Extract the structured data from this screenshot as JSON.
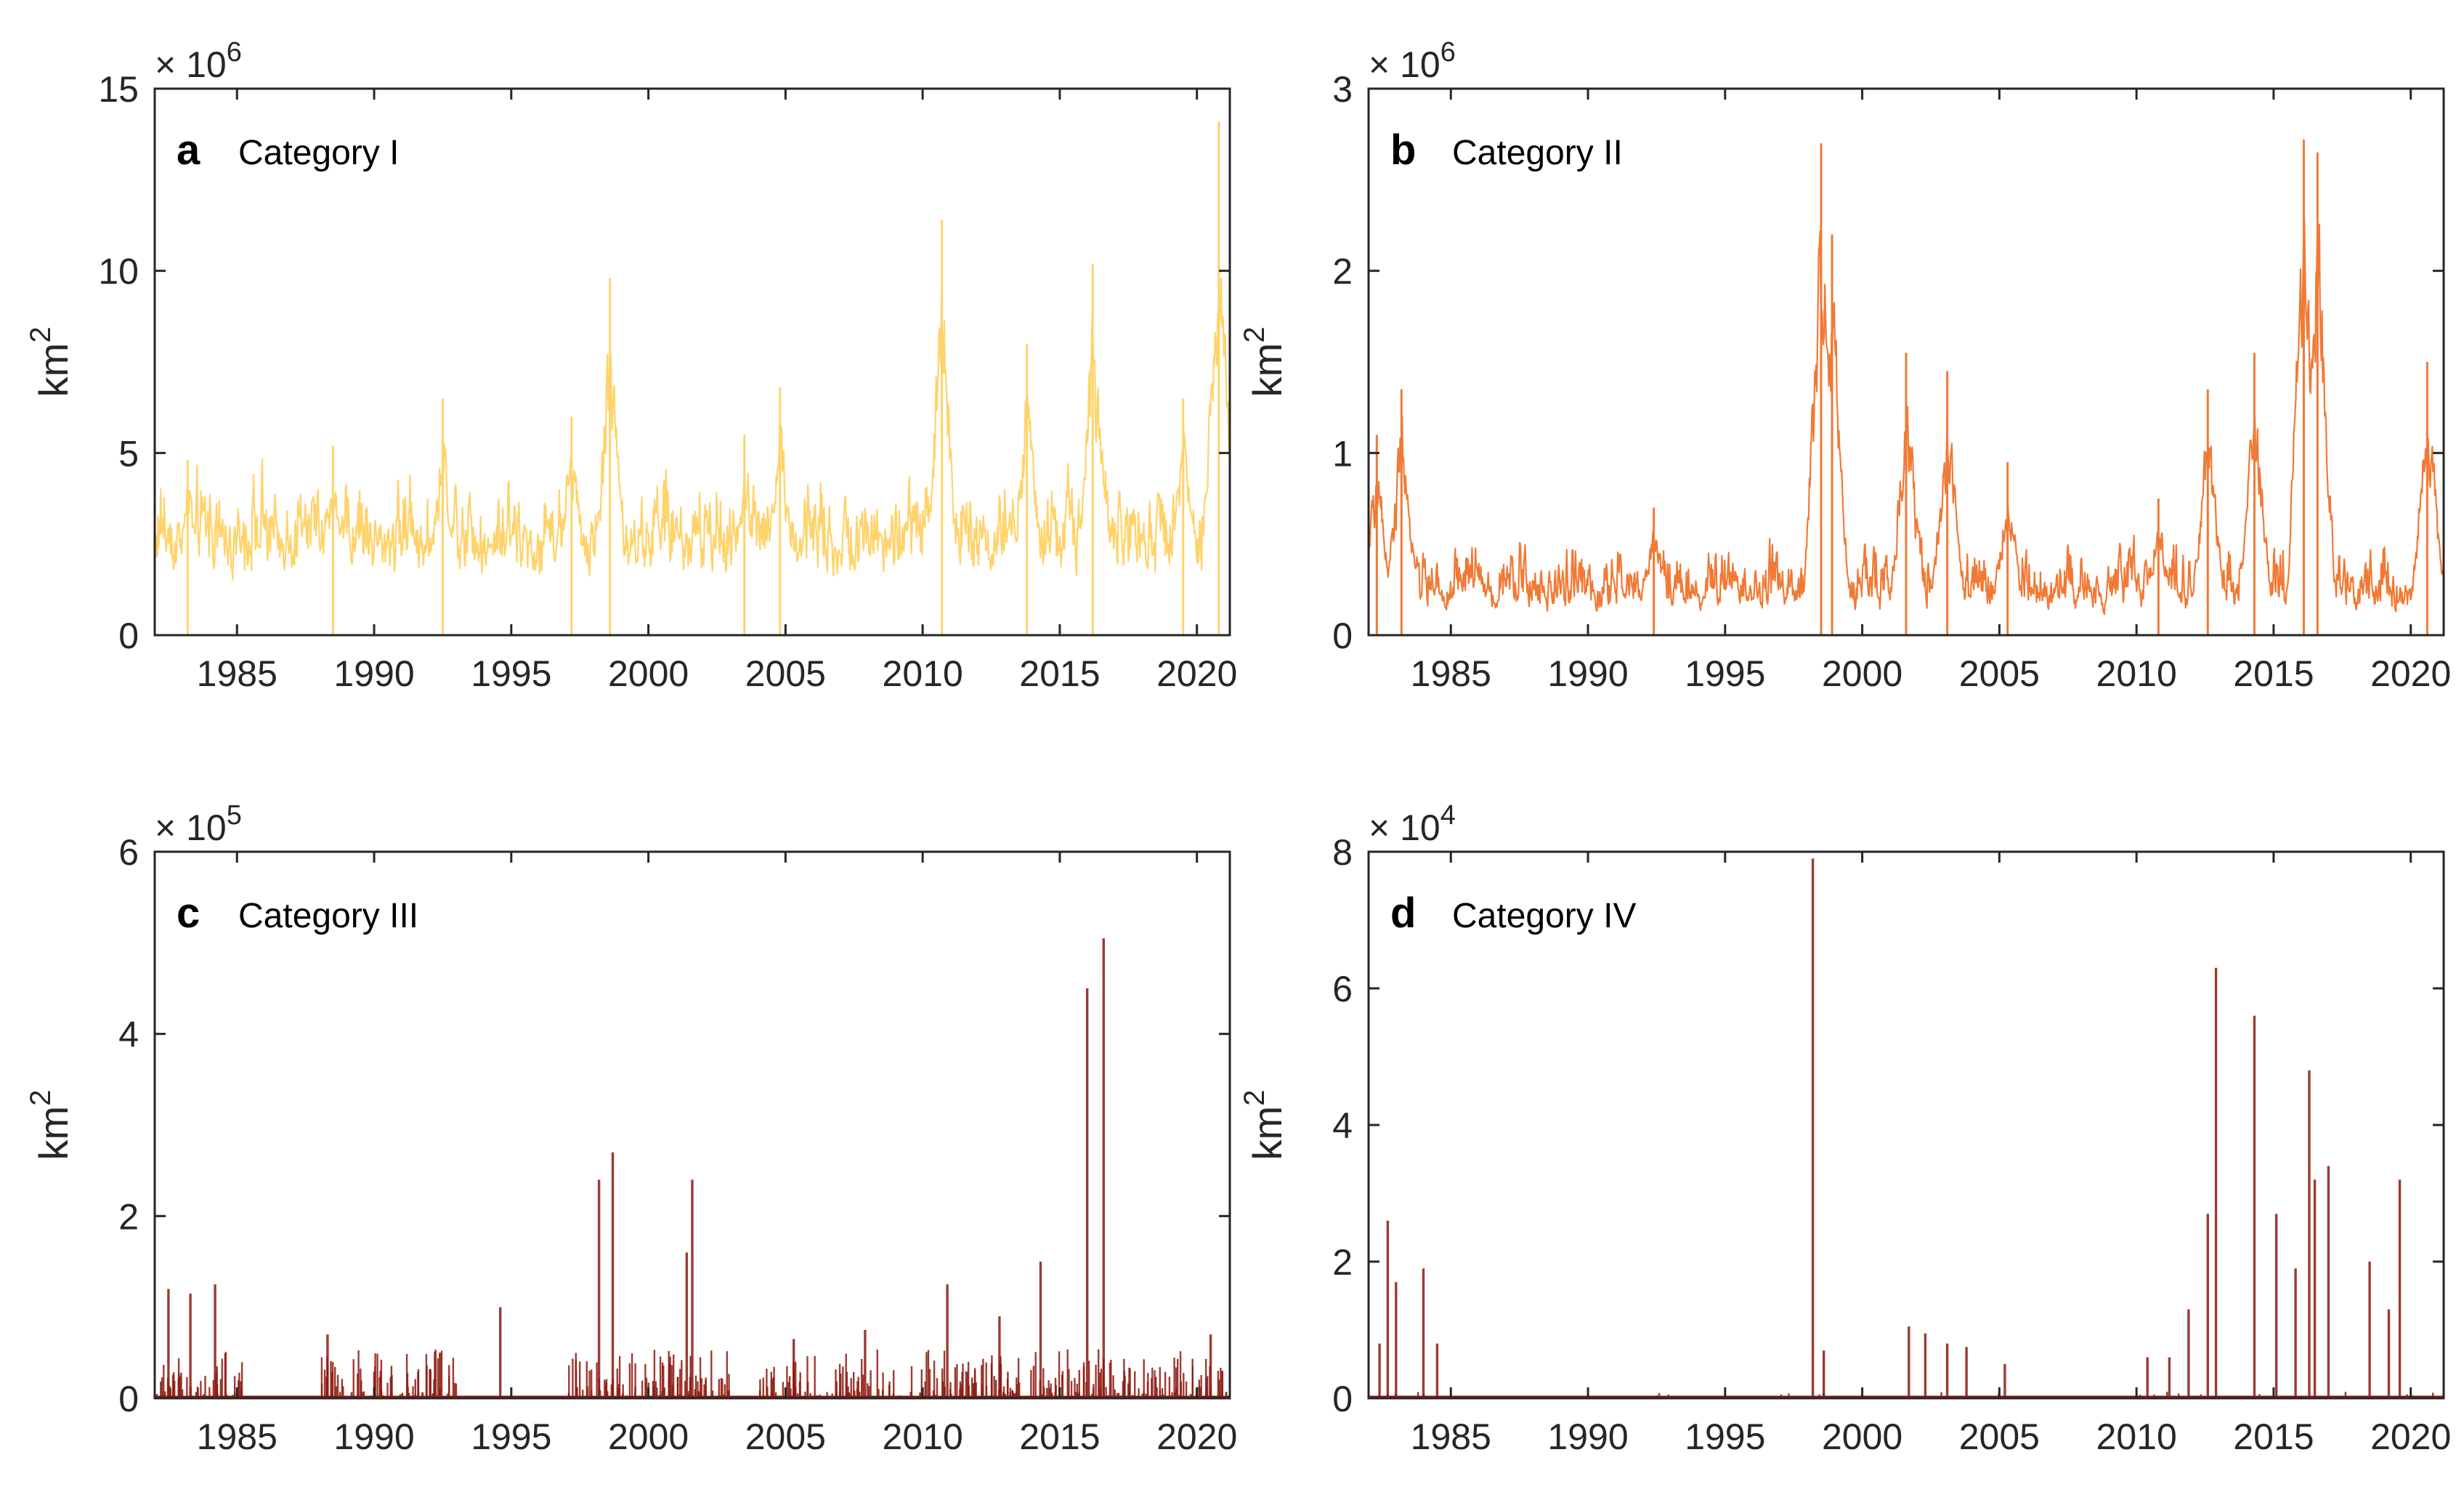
{
  "chart_data": [
    {
      "type": "line",
      "panel": "a",
      "title": "Category I",
      "color": "#FFD36B",
      "ylabel": "km2",
      "exponent": "6",
      "ylim": [
        0,
        15
      ],
      "yticks": [
        0,
        5,
        10,
        15
      ],
      "xlim": [
        1982,
        2021.2
      ],
      "xticks": [
        1985,
        1990,
        1995,
        2000,
        2005,
        2010,
        2015,
        2020
      ],
      "baseline": 2.0,
      "noise": 2.2,
      "peaks": [
        [
          1983.2,
          4.8
        ],
        [
          1988.5,
          5.2
        ],
        [
          1992.5,
          6.5
        ],
        [
          1997.2,
          6.0
        ],
        [
          1998.6,
          9.8
        ],
        [
          2003.5,
          5.5
        ],
        [
          2004.8,
          6.8
        ],
        [
          2010.7,
          11.4
        ],
        [
          2013.8,
          8.0
        ],
        [
          2016.2,
          10.2
        ],
        [
          2019.5,
          6.5
        ],
        [
          2020.8,
          14.1
        ]
      ]
    },
    {
      "type": "line",
      "panel": "b",
      "title": "Category II",
      "color": "#F07A35",
      "ylabel": "km2",
      "exponent": "6",
      "ylim": [
        0,
        3
      ],
      "yticks": [
        0,
        1,
        2,
        3
      ],
      "xlim": [
        1982,
        2021.2
      ],
      "xticks": [
        1985,
        1990,
        1995,
        2000,
        2005,
        2010,
        2015,
        2020
      ],
      "baseline": 0.15,
      "noise": 0.35,
      "peaks": [
        [
          1982.3,
          1.1
        ],
        [
          1983.2,
          1.35
        ],
        [
          1992.4,
          0.7
        ],
        [
          1998.5,
          2.7
        ],
        [
          1998.9,
          2.2
        ],
        [
          2001.6,
          1.55
        ],
        [
          2003.1,
          1.45
        ],
        [
          2005.3,
          0.95
        ],
        [
          2010.8,
          0.75
        ],
        [
          2012.6,
          1.35
        ],
        [
          2014.3,
          1.55
        ],
        [
          2016.1,
          2.72
        ],
        [
          2016.6,
          2.65
        ],
        [
          2020.6,
          1.5
        ]
      ]
    },
    {
      "type": "bar",
      "panel": "c",
      "title": "Category III",
      "color": "#8B1A10",
      "ylabel": "km2",
      "exponent": "5",
      "ylim": [
        0,
        6
      ],
      "yticks": [
        0,
        2,
        4,
        6
      ],
      "xlim": [
        1982,
        2021.2
      ],
      "xticks": [
        1985,
        1990,
        1995,
        2000,
        2005,
        2010,
        2015,
        2020
      ],
      "peaks": [
        [
          1982.5,
          1.2
        ],
        [
          1983.3,
          1.15
        ],
        [
          1984.2,
          1.25
        ],
        [
          1988.3,
          0.7
        ],
        [
          1992.4,
          0.5
        ],
        [
          1994.6,
          1.0
        ],
        [
          1998.2,
          2.4
        ],
        [
          1998.7,
          2.7
        ],
        [
          2001.4,
          1.6
        ],
        [
          2001.6,
          2.4
        ],
        [
          2005.3,
          0.65
        ],
        [
          2007.9,
          0.75
        ],
        [
          2010.9,
          1.25
        ],
        [
          2012.8,
          0.9
        ],
        [
          2014.3,
          1.5
        ],
        [
          2016.0,
          4.5
        ],
        [
          2016.6,
          5.05
        ],
        [
          2020.5,
          0.7
        ]
      ]
    },
    {
      "type": "bar",
      "panel": "d",
      "title": "Category IV",
      "color": "#8B1A10",
      "ylabel": "km2",
      "exponent": "4",
      "ylim": [
        0,
        8
      ],
      "yticks": [
        0,
        2,
        4,
        6,
        8
      ],
      "xlim": [
        1982,
        2021.2
      ],
      "xticks": [
        1985,
        1990,
        1995,
        2000,
        2005,
        2010,
        2015,
        2020
      ],
      "peaks": [
        [
          1982.4,
          0.8
        ],
        [
          1982.7,
          2.6
        ],
        [
          1983.0,
          1.7
        ],
        [
          1984.0,
          1.9
        ],
        [
          1984.5,
          0.8
        ],
        [
          1998.2,
          7.9
        ],
        [
          1998.6,
          0.7
        ],
        [
          2001.7,
          1.05
        ],
        [
          2002.3,
          0.95
        ],
        [
          2003.1,
          0.8
        ],
        [
          2003.8,
          0.75
        ],
        [
          2005.2,
          0.5
        ],
        [
          2010.4,
          0.6
        ],
        [
          2011.2,
          0.6
        ],
        [
          2011.9,
          1.3
        ],
        [
          2012.6,
          2.7
        ],
        [
          2012.9,
          6.3
        ],
        [
          2014.3,
          5.6
        ],
        [
          2015.1,
          2.7
        ],
        [
          2015.8,
          1.9
        ],
        [
          2016.3,
          4.8
        ],
        [
          2016.5,
          3.2
        ],
        [
          2017.0,
          3.4
        ],
        [
          2018.5,
          2.0
        ],
        [
          2019.2,
          1.3
        ],
        [
          2019.6,
          3.2
        ]
      ]
    }
  ]
}
